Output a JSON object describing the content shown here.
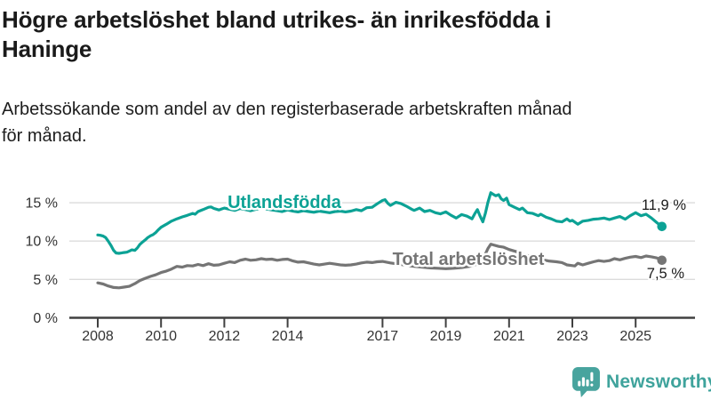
{
  "header": {
    "title_lines": [
      "Högre arbetslöshet bland utrikes- än inrikesfödda i",
      "Haninge"
    ],
    "subtitle_lines": [
      "Arbetssökande som andel av den registerbaserade arbetskraften månad",
      "för månad."
    ]
  },
  "footer": {
    "brand": "Newsworthy",
    "brand_color": "#3fa39c",
    "logo_icon": "bar-chart-speech-bubble-icon"
  },
  "chart_data": {
    "type": "line",
    "title": "",
    "xlabel": "",
    "ylabel": "",
    "unit": "%",
    "grid": true,
    "legend_position": "inline-labels",
    "xlim": [
      2007.8,
      2026.3
    ],
    "ylim": [
      0,
      17
    ],
    "yticks": [
      0,
      5,
      10,
      15
    ],
    "ytick_labels": [
      "0 %",
      "5 %",
      "10 %",
      "15 %"
    ],
    "xticks": [
      2008,
      2010,
      2012,
      2014,
      2017,
      2019,
      2021,
      2023,
      2025
    ],
    "xtick_labels": [
      "2008",
      "2010",
      "2012",
      "2014",
      "2017",
      "2019",
      "2021",
      "2023",
      "2025"
    ],
    "colors": {
      "foreign_born": "#0ca295",
      "total": "#757575",
      "grid": "#dcdcdc",
      "axis": "#404040",
      "annotation": "#1a1a1a"
    },
    "series": [
      {
        "name": "Utlandsfödda",
        "color": "#0ca295",
        "end_label": "11,9 %",
        "end_value": 11.9,
        "points": [
          [
            2008.0,
            10.8
          ],
          [
            2008.08,
            10.75
          ],
          [
            2008.17,
            10.65
          ],
          [
            2008.25,
            10.45
          ],
          [
            2008.33,
            10.0
          ],
          [
            2008.42,
            9.4
          ],
          [
            2008.5,
            8.8
          ],
          [
            2008.58,
            8.45
          ],
          [
            2008.67,
            8.4
          ],
          [
            2008.75,
            8.45
          ],
          [
            2008.83,
            8.5
          ],
          [
            2008.92,
            8.55
          ],
          [
            2009.0,
            8.7
          ],
          [
            2009.08,
            8.85
          ],
          [
            2009.17,
            8.78
          ],
          [
            2009.25,
            9.1
          ],
          [
            2009.33,
            9.55
          ],
          [
            2009.42,
            9.9
          ],
          [
            2009.5,
            10.15
          ],
          [
            2009.58,
            10.45
          ],
          [
            2009.67,
            10.7
          ],
          [
            2009.75,
            10.85
          ],
          [
            2009.83,
            11.1
          ],
          [
            2009.92,
            11.5
          ],
          [
            2010.0,
            11.8
          ],
          [
            2010.17,
            12.2
          ],
          [
            2010.33,
            12.6
          ],
          [
            2010.5,
            12.9
          ],
          [
            2010.67,
            13.15
          ],
          [
            2010.83,
            13.35
          ],
          [
            2011.0,
            13.6
          ],
          [
            2011.08,
            13.5
          ],
          [
            2011.17,
            13.85
          ],
          [
            2011.33,
            14.1
          ],
          [
            2011.5,
            14.4
          ],
          [
            2011.58,
            14.45
          ],
          [
            2011.67,
            14.25
          ],
          [
            2011.83,
            14.05
          ],
          [
            2011.92,
            14.2
          ],
          [
            2012.0,
            14.3
          ],
          [
            2012.17,
            14.15
          ],
          [
            2012.33,
            14.0
          ],
          [
            2012.5,
            14.25
          ],
          [
            2012.67,
            14.1
          ],
          [
            2012.83,
            13.95
          ],
          [
            2013.0,
            14.15
          ],
          [
            2013.17,
            14.3
          ],
          [
            2013.33,
            14.2
          ],
          [
            2013.5,
            14.05
          ],
          [
            2013.67,
            13.95
          ],
          [
            2013.83,
            13.85
          ],
          [
            2014.0,
            14.05
          ],
          [
            2014.17,
            13.9
          ],
          [
            2014.33,
            13.8
          ],
          [
            2014.5,
            13.95
          ],
          [
            2014.67,
            13.85
          ],
          [
            2014.83,
            13.75
          ],
          [
            2015.0,
            13.9
          ],
          [
            2015.17,
            13.8
          ],
          [
            2015.33,
            13.7
          ],
          [
            2015.5,
            13.85
          ],
          [
            2015.67,
            13.9
          ],
          [
            2015.83,
            13.8
          ],
          [
            2016.0,
            13.9
          ],
          [
            2016.17,
            14.1
          ],
          [
            2016.33,
            13.95
          ],
          [
            2016.5,
            14.35
          ],
          [
            2016.67,
            14.4
          ],
          [
            2016.83,
            14.85
          ],
          [
            2017.0,
            15.3
          ],
          [
            2017.08,
            15.4
          ],
          [
            2017.17,
            14.9
          ],
          [
            2017.25,
            14.65
          ],
          [
            2017.42,
            15.05
          ],
          [
            2017.58,
            14.9
          ],
          [
            2017.75,
            14.55
          ],
          [
            2017.92,
            14.15
          ],
          [
            2018.0,
            14.0
          ],
          [
            2018.17,
            14.3
          ],
          [
            2018.33,
            13.85
          ],
          [
            2018.5,
            14.0
          ],
          [
            2018.67,
            13.7
          ],
          [
            2018.83,
            13.55
          ],
          [
            2019.0,
            13.8
          ],
          [
            2019.17,
            13.35
          ],
          [
            2019.33,
            13.0
          ],
          [
            2019.5,
            13.45
          ],
          [
            2019.67,
            13.25
          ],
          [
            2019.83,
            12.9
          ],
          [
            2019.92,
            13.6
          ],
          [
            2020.0,
            14.1
          ],
          [
            2020.08,
            13.3
          ],
          [
            2020.17,
            12.5
          ],
          [
            2020.25,
            13.6
          ],
          [
            2020.33,
            15.0
          ],
          [
            2020.42,
            16.3
          ],
          [
            2020.5,
            16.1
          ],
          [
            2020.58,
            15.9
          ],
          [
            2020.67,
            16.05
          ],
          [
            2020.75,
            15.5
          ],
          [
            2020.83,
            15.3
          ],
          [
            2020.92,
            15.6
          ],
          [
            2021.0,
            14.75
          ],
          [
            2021.17,
            14.4
          ],
          [
            2021.33,
            14.1
          ],
          [
            2021.42,
            14.3
          ],
          [
            2021.58,
            13.7
          ],
          [
            2021.75,
            13.6
          ],
          [
            2021.92,
            13.3
          ],
          [
            2022.0,
            13.5
          ],
          [
            2022.17,
            13.1
          ],
          [
            2022.33,
            12.9
          ],
          [
            2022.5,
            12.6
          ],
          [
            2022.67,
            12.5
          ],
          [
            2022.83,
            12.9
          ],
          [
            2022.92,
            12.6
          ],
          [
            2023.0,
            12.7
          ],
          [
            2023.17,
            12.2
          ],
          [
            2023.33,
            12.6
          ],
          [
            2023.5,
            12.7
          ],
          [
            2023.67,
            12.85
          ],
          [
            2023.83,
            12.9
          ],
          [
            2024.0,
            13.0
          ],
          [
            2024.17,
            12.8
          ],
          [
            2024.33,
            13.0
          ],
          [
            2024.5,
            13.2
          ],
          [
            2024.67,
            12.85
          ],
          [
            2024.83,
            13.3
          ],
          [
            2025.0,
            13.7
          ],
          [
            2025.17,
            13.3
          ],
          [
            2025.33,
            13.5
          ],
          [
            2025.5,
            13.0
          ],
          [
            2025.67,
            12.4
          ],
          [
            2025.83,
            11.9
          ]
        ]
      },
      {
        "name": "Total arbetslöshet",
        "color": "#757575",
        "end_label": "7,5 %",
        "end_value": 7.5,
        "points": [
          [
            2008.0,
            4.55
          ],
          [
            2008.17,
            4.4
          ],
          [
            2008.33,
            4.15
          ],
          [
            2008.5,
            3.95
          ],
          [
            2008.67,
            3.9
          ],
          [
            2008.83,
            4.0
          ],
          [
            2009.0,
            4.1
          ],
          [
            2009.17,
            4.45
          ],
          [
            2009.33,
            4.85
          ],
          [
            2009.5,
            5.15
          ],
          [
            2009.67,
            5.4
          ],
          [
            2009.83,
            5.6
          ],
          [
            2010.0,
            5.9
          ],
          [
            2010.17,
            6.1
          ],
          [
            2010.33,
            6.35
          ],
          [
            2010.5,
            6.7
          ],
          [
            2010.67,
            6.6
          ],
          [
            2010.83,
            6.8
          ],
          [
            2011.0,
            6.75
          ],
          [
            2011.17,
            6.95
          ],
          [
            2011.33,
            6.8
          ],
          [
            2011.5,
            7.05
          ],
          [
            2011.67,
            6.85
          ],
          [
            2011.83,
            6.9
          ],
          [
            2012.0,
            7.1
          ],
          [
            2012.17,
            7.3
          ],
          [
            2012.33,
            7.2
          ],
          [
            2012.5,
            7.5
          ],
          [
            2012.67,
            7.65
          ],
          [
            2012.83,
            7.5
          ],
          [
            2013.0,
            7.55
          ],
          [
            2013.17,
            7.7
          ],
          [
            2013.33,
            7.6
          ],
          [
            2013.5,
            7.65
          ],
          [
            2013.67,
            7.5
          ],
          [
            2013.83,
            7.6
          ],
          [
            2014.0,
            7.65
          ],
          [
            2014.17,
            7.4
          ],
          [
            2014.33,
            7.25
          ],
          [
            2014.5,
            7.3
          ],
          [
            2014.67,
            7.15
          ],
          [
            2014.83,
            7.0
          ],
          [
            2015.0,
            6.9
          ],
          [
            2015.17,
            7.0
          ],
          [
            2015.33,
            7.1
          ],
          [
            2015.5,
            7.0
          ],
          [
            2015.67,
            6.9
          ],
          [
            2015.83,
            6.85
          ],
          [
            2016.0,
            6.9
          ],
          [
            2016.17,
            7.0
          ],
          [
            2016.33,
            7.15
          ],
          [
            2016.5,
            7.25
          ],
          [
            2016.67,
            7.2
          ],
          [
            2016.83,
            7.3
          ],
          [
            2017.0,
            7.35
          ],
          [
            2017.25,
            7.15
          ],
          [
            2017.5,
            7.0
          ],
          [
            2017.75,
            6.85
          ],
          [
            2018.0,
            6.7
          ],
          [
            2018.25,
            6.6
          ],
          [
            2018.5,
            6.5
          ],
          [
            2018.75,
            6.45
          ],
          [
            2019.0,
            6.4
          ],
          [
            2019.25,
            6.45
          ],
          [
            2019.5,
            6.55
          ],
          [
            2019.75,
            6.7
          ],
          [
            2020.0,
            7.0
          ],
          [
            2020.17,
            7.6
          ],
          [
            2020.33,
            9.0
          ],
          [
            2020.42,
            9.6
          ],
          [
            2020.5,
            9.5
          ],
          [
            2020.67,
            9.3
          ],
          [
            2020.83,
            9.2
          ],
          [
            2021.0,
            8.9
          ],
          [
            2021.25,
            8.6
          ],
          [
            2021.5,
            8.2
          ],
          [
            2021.75,
            7.9
          ],
          [
            2022.0,
            7.6
          ],
          [
            2022.25,
            7.4
          ],
          [
            2022.5,
            7.3
          ],
          [
            2022.67,
            7.2
          ],
          [
            2022.83,
            6.9
          ],
          [
            2023.0,
            6.8
          ],
          [
            2023.08,
            6.75
          ],
          [
            2023.17,
            7.1
          ],
          [
            2023.33,
            6.9
          ],
          [
            2023.5,
            7.1
          ],
          [
            2023.67,
            7.3
          ],
          [
            2023.83,
            7.45
          ],
          [
            2024.0,
            7.35
          ],
          [
            2024.17,
            7.45
          ],
          [
            2024.33,
            7.7
          ],
          [
            2024.5,
            7.55
          ],
          [
            2024.67,
            7.75
          ],
          [
            2024.83,
            7.9
          ],
          [
            2025.0,
            8.0
          ],
          [
            2025.17,
            7.85
          ],
          [
            2025.33,
            8.05
          ],
          [
            2025.5,
            7.95
          ],
          [
            2025.67,
            7.8
          ],
          [
            2025.83,
            7.5
          ]
        ]
      }
    ]
  }
}
